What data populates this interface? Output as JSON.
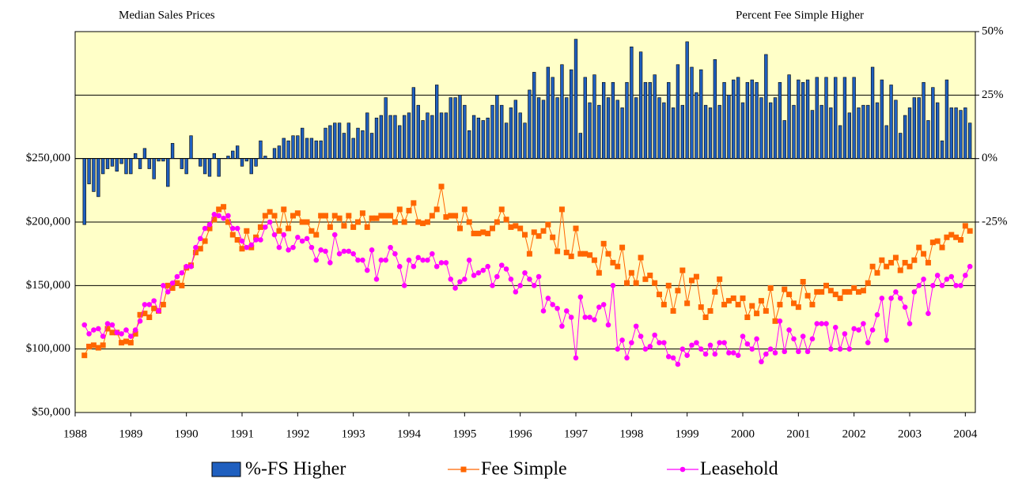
{
  "chart_data": {
    "type": "combo",
    "title": "Median Sales Prices",
    "y2_title": "Percent Fee Simple Higher",
    "xlim": [
      1988,
      2004.18
    ],
    "xticks": [
      1988,
      1989,
      1990,
      1991,
      1992,
      1993,
      1994,
      1995,
      1996,
      1997,
      1998,
      1999,
      2000,
      2001,
      2002,
      2003,
      2004
    ],
    "ylim": [
      50000,
      350000
    ],
    "yticks": [
      {
        "value": 50000,
        "label": "$50,000"
      },
      {
        "value": 100000,
        "label": "$100,000"
      },
      {
        "value": 150000,
        "label": "$150,000"
      },
      {
        "value": 200000,
        "label": "$200,000"
      },
      {
        "value": 250000,
        "label": "$250,000"
      }
    ],
    "y2lim": [
      -100,
      50
    ],
    "y2ticks": [
      {
        "value": 50,
        "label": "50%"
      },
      {
        "value": 25,
        "label": "25%"
      },
      {
        "value": 0,
        "label": "0%"
      },
      {
        "value": -25,
        "label": "-25%"
      }
    ],
    "grid": true,
    "legend": "bottom",
    "x": [
      1988.167,
      1988.25,
      1988.333,
      1988.417,
      1988.5,
      1988.583,
      1988.667,
      1988.75,
      1988.833,
      1988.917,
      1989,
      1989.083,
      1989.167,
      1989.25,
      1989.333,
      1989.417,
      1989.5,
      1989.583,
      1989.667,
      1989.75,
      1989.833,
      1989.917,
      1990,
      1990.083,
      1990.167,
      1990.25,
      1990.333,
      1990.417,
      1990.5,
      1990.583,
      1990.667,
      1990.75,
      1990.833,
      1990.917,
      1991,
      1991.083,
      1991.167,
      1991.25,
      1991.333,
      1991.417,
      1991.5,
      1991.583,
      1991.667,
      1991.75,
      1991.833,
      1991.917,
      1992,
      1992.083,
      1992.167,
      1992.25,
      1992.333,
      1992.417,
      1992.5,
      1992.583,
      1992.667,
      1992.75,
      1992.833,
      1992.917,
      1993,
      1993.083,
      1993.167,
      1993.25,
      1993.333,
      1993.417,
      1993.5,
      1993.583,
      1993.667,
      1993.75,
      1993.833,
      1993.917,
      1994,
      1994.083,
      1994.167,
      1994.25,
      1994.333,
      1994.417,
      1994.5,
      1994.583,
      1994.667,
      1994.75,
      1994.833,
      1994.917,
      1995,
      1995.083,
      1995.167,
      1995.25,
      1995.333,
      1995.417,
      1995.5,
      1995.583,
      1995.667,
      1995.75,
      1995.833,
      1995.917,
      1996,
      1996.083,
      1996.167,
      1996.25,
      1996.333,
      1996.417,
      1996.5,
      1996.583,
      1996.667,
      1996.75,
      1996.833,
      1996.917,
      1997,
      1997.083,
      1997.167,
      1997.25,
      1997.333,
      1997.417,
      1997.5,
      1997.583,
      1997.667,
      1997.75,
      1997.833,
      1997.917,
      1998,
      1998.083,
      1998.167,
      1998.25,
      1998.333,
      1998.417,
      1998.5,
      1998.583,
      1998.667,
      1998.75,
      1998.833,
      1998.917,
      1999,
      1999.083,
      1999.167,
      1999.25,
      1999.333,
      1999.417,
      1999.5,
      1999.583,
      1999.667,
      1999.75,
      1999.833,
      1999.917,
      2000,
      2000.083,
      2000.167,
      2000.25,
      2000.333,
      2000.417,
      2000.5,
      2000.583,
      2000.667,
      2000.75,
      2000.833,
      2000.917,
      2001,
      2001.083,
      2001.167,
      2001.25,
      2001.333,
      2001.417,
      2001.5,
      2001.583,
      2001.667,
      2001.75,
      2001.833,
      2001.917,
      2002,
      2002.083,
      2002.167,
      2002.25,
      2002.333,
      2002.417,
      2002.5,
      2002.583,
      2002.667,
      2002.75,
      2002.833,
      2002.917,
      2003,
      2003.083,
      2003.167,
      2003.25,
      2003.333,
      2003.417,
      2003.5,
      2003.583,
      2003.667,
      2003.75,
      2003.833,
      2003.917,
      2004,
      2004.083
    ],
    "series": [
      {
        "name": "%-FS Higher",
        "type": "bar",
        "axis": "y2",
        "color": "#1f5fbf",
        "values": [
          -26,
          -10,
          -13,
          -15,
          -6,
          -4,
          -3,
          -5,
          -2,
          -6,
          -6,
          2,
          -4,
          4,
          -4,
          -8,
          -1,
          -1,
          -11,
          6,
          0,
          -4,
          -6,
          9,
          0,
          -3,
          -6,
          -7,
          2,
          -7,
          0,
          1,
          3,
          5,
          -3,
          -1,
          -6,
          -3,
          7,
          1,
          0,
          4,
          5,
          8,
          7,
          9,
          9,
          12,
          8,
          8,
          7,
          7,
          12,
          13,
          14,
          14,
          10,
          14,
          8,
          12,
          11,
          18,
          10,
          16,
          17,
          24,
          17,
          17,
          13,
          17,
          18,
          28,
          21,
          15,
          18,
          17,
          29,
          18,
          18,
          24,
          24,
          25,
          21,
          11,
          17,
          16,
          15,
          16,
          21,
          25,
          21,
          14,
          20,
          23,
          18,
          14,
          27,
          34,
          24,
          23,
          36,
          32,
          24,
          37,
          24,
          35,
          47,
          10,
          32,
          22,
          33,
          21,
          30,
          24,
          30,
          23,
          20,
          30,
          44,
          24,
          42,
          30,
          30,
          33,
          24,
          22,
          30,
          20,
          37,
          21,
          46,
          36,
          26,
          35,
          21,
          20,
          39,
          21,
          30,
          25,
          31,
          32,
          22,
          30,
          31,
          30,
          24,
          41,
          22,
          24,
          30,
          15,
          33,
          21,
          31,
          30,
          31,
          19,
          32,
          21,
          32,
          20,
          32,
          13,
          32,
          18,
          32,
          20,
          21,
          21,
          36,
          22,
          31,
          13,
          29,
          23,
          10,
          17,
          20,
          24,
          24,
          30,
          15,
          28,
          22,
          7,
          31,
          20,
          20,
          19,
          20,
          14
        ]
      },
      {
        "name": "Fee Simple",
        "type": "line",
        "marker": "square",
        "color": "#ff6600",
        "values": [
          95000,
          102000,
          103000,
          101000,
          103000,
          116000,
          113000,
          113000,
          105000,
          106000,
          105000,
          112000,
          127000,
          128000,
          125000,
          132000,
          130000,
          135000,
          150000,
          148000,
          152000,
          150000,
          164000,
          166000,
          176000,
          179000,
          185000,
          195000,
          202000,
          210000,
          212000,
          200000,
          190000,
          186000,
          179000,
          193000,
          180000,
          188000,
          196000,
          205000,
          208000,
          205000,
          193000,
          210000,
          195000,
          205000,
          207000,
          200000,
          200000,
          193000,
          190000,
          205000,
          205000,
          196000,
          205000,
          203000,
          197000,
          205000,
          196000,
          200000,
          207000,
          196000,
          203000,
          203000,
          205000,
          205000,
          205000,
          200000,
          210000,
          200000,
          209000,
          215000,
          200000,
          199000,
          200000,
          205000,
          210000,
          228000,
          204000,
          205000,
          205000,
          195000,
          210000,
          200000,
          191000,
          191000,
          192000,
          191000,
          195000,
          200000,
          210000,
          202000,
          196000,
          197000,
          195000,
          190000,
          175000,
          192000,
          189000,
          193000,
          198000,
          188000,
          177000,
          210000,
          176000,
          173000,
          195000,
          175000,
          175000,
          174000,
          170000,
          160000,
          183000,
          175000,
          168000,
          165000,
          180000,
          152000,
          160000,
          152000,
          172000,
          155000,
          158000,
          152000,
          143000,
          135000,
          150000,
          130000,
          146000,
          162000,
          136000,
          154000,
          157000,
          133000,
          125000,
          130000,
          145000,
          155000,
          135000,
          138000,
          140000,
          135000,
          140000,
          125000,
          134000,
          128000,
          138000,
          130000,
          148000,
          122000,
          135000,
          147000,
          143000,
          136000,
          133000,
          153000,
          142000,
          135000,
          145000,
          145000,
          150000,
          146000,
          143000,
          140000,
          145000,
          145000,
          148000,
          145000,
          146000,
          152000,
          165000,
          160000,
          170000,
          165000,
          168000,
          172000,
          162000,
          168000,
          165000,
          170000,
          180000,
          175000,
          168000,
          184000,
          185000,
          180000,
          188000,
          190000,
          188000,
          186000,
          197000,
          193000
        ]
      },
      {
        "name": "Leasehold",
        "type": "line",
        "marker": "circle",
        "color": "#ff00ff",
        "values": [
          119000,
          112000,
          115000,
          116000,
          110000,
          120000,
          119000,
          113000,
          112000,
          115000,
          110000,
          115000,
          122000,
          135000,
          135000,
          138000,
          130000,
          150000,
          145000,
          152000,
          157000,
          160000,
          165000,
          165000,
          180000,
          187000,
          195000,
          198000,
          206000,
          205000,
          203000,
          205000,
          195000,
          195000,
          185000,
          180000,
          182000,
          186000,
          186000,
          196000,
          200000,
          190000,
          180000,
          190000,
          178000,
          180000,
          188000,
          185000,
          187000,
          180000,
          170000,
          178000,
          177000,
          168000,
          190000,
          175000,
          177000,
          177000,
          175000,
          170000,
          170000,
          162000,
          178000,
          155000,
          170000,
          170000,
          180000,
          175000,
          165000,
          150000,
          170000,
          165000,
          172000,
          170000,
          170000,
          175000,
          165000,
          168000,
          168000,
          155000,
          148000,
          153000,
          155000,
          170000,
          158000,
          160000,
          162000,
          165000,
          150000,
          157000,
          166000,
          163000,
          155000,
          145000,
          150000,
          160000,
          155000,
          150000,
          157000,
          130000,
          140000,
          135000,
          132000,
          118000,
          130000,
          125000,
          93000,
          141000,
          125000,
          125000,
          123000,
          133000,
          135000,
          119000,
          150000,
          100000,
          107000,
          93000,
          105000,
          118000,
          110000,
          100000,
          102000,
          111000,
          105000,
          105000,
          94000,
          93000,
          88000,
          100000,
          95000,
          103000,
          105000,
          100000,
          96000,
          103000,
          96000,
          105000,
          105000,
          97000,
          97000,
          95000,
          110000,
          104000,
          100000,
          108000,
          90000,
          96000,
          100000,
          97000,
          122000,
          98000,
          115000,
          108000,
          98000,
          110000,
          98000,
          108000,
          120000,
          120000,
          120000,
          100000,
          117000,
          100000,
          112000,
          100000,
          116000,
          115000,
          120000,
          105000,
          115000,
          127000,
          140000,
          107000,
          140000,
          145000,
          140000,
          133000,
          120000,
          145000,
          150000,
          155000,
          128000,
          150000,
          158000,
          150000,
          155000,
          157000,
          150000,
          150000,
          158000,
          165000
        ]
      }
    ]
  }
}
